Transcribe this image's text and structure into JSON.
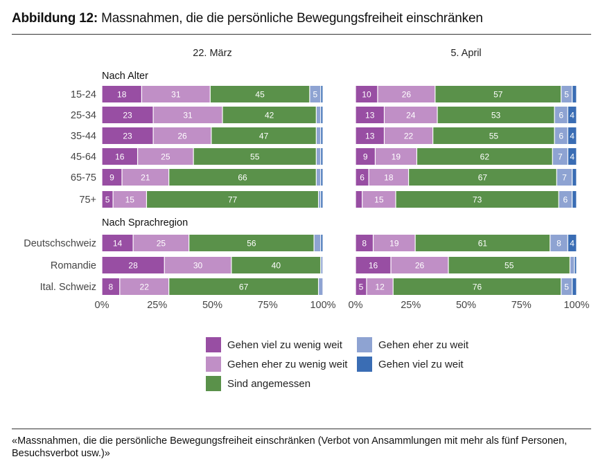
{
  "figure": {
    "label": "Abbildung 12:",
    "title": "Massnahmen, die die persönliche Bewegungsfreiheit einschränken",
    "footnote": "«Massnahmen, die die persönliche Bewegungsfreiheit einschränken (Verbot von Ansammlungen mit mehr als fünf Personen, Besuchsverbot usw.)»"
  },
  "chart_data": {
    "type": "bar",
    "orientation": "horizontal",
    "stacked": true,
    "title": "Massnahmen, die die persönliche Bewegungsfreiheit einschränken",
    "xlabel": "",
    "ylabel": "",
    "xlim": [
      0,
      100
    ],
    "x_ticks": [
      "0%",
      "25%",
      "50%",
      "75%",
      "100%"
    ],
    "grid": false,
    "legend_position": "bottom",
    "colors": {
      "viel_zu_wenig": "#984ea3",
      "eher_zu_wenig": "#c08fc6",
      "angemessen": "#5a914a",
      "eher_zu_weit": "#8ea3d2",
      "viel_zu_weit": "#3a6db4"
    },
    "legend": [
      {
        "key": "viel_zu_wenig",
        "label": "Gehen viel zu wenig weit"
      },
      {
        "key": "eher_zu_wenig",
        "label": "Gehen eher zu wenig weit"
      },
      {
        "key": "angemessen",
        "label": "Sind angemessen"
      },
      {
        "key": "eher_zu_weit",
        "label": "Gehen eher zu weit"
      },
      {
        "key": "viel_zu_weit",
        "label": "Gehen viel zu weit"
      }
    ],
    "series_keys": [
      "viel_zu_wenig",
      "eher_zu_wenig",
      "angemessen",
      "eher_zu_weit",
      "viel_zu_weit"
    ],
    "groups": [
      {
        "label": "Nach Alter",
        "categories": [
          "15-24",
          "25-34",
          "35-44",
          "45-64",
          "65-75",
          "75+"
        ]
      },
      {
        "label": "Nach Sprachregion",
        "categories": [
          "Deutschschweiz",
          "Romandie",
          "Ital. Schweiz"
        ]
      }
    ],
    "panels": [
      {
        "title": "22. März",
        "rows": [
          {
            "category": "15-24",
            "values": [
              18,
              31,
              45,
              5,
              1
            ]
          },
          {
            "category": "25-34",
            "values": [
              23,
              31,
              42,
              2,
              1
            ]
          },
          {
            "category": "35-44",
            "values": [
              23,
              26,
              47,
              2,
              1
            ]
          },
          {
            "category": "45-64",
            "values": [
              16,
              25,
              55,
              2,
              1
            ]
          },
          {
            "category": "65-75",
            "values": [
              9,
              21,
              66,
              2,
              1
            ]
          },
          {
            "category": "75+",
            "values": [
              5,
              15,
              77,
              1,
              1
            ]
          },
          {
            "category": "Deutschschweiz",
            "values": [
              14,
              25,
              56,
              3,
              1
            ]
          },
          {
            "category": "Romandie",
            "values": [
              28,
              30,
              40,
              1,
              0
            ]
          },
          {
            "category": "Ital. Schweiz",
            "values": [
              8,
              22,
              67,
              2,
              0
            ]
          }
        ]
      },
      {
        "title": "5. April",
        "rows": [
          {
            "category": "15-24",
            "values": [
              10,
              26,
              57,
              5,
              2
            ]
          },
          {
            "category": "25-34",
            "values": [
              13,
              24,
              53,
              6,
              4
            ]
          },
          {
            "category": "35-44",
            "values": [
              13,
              22,
              55,
              6,
              4
            ]
          },
          {
            "category": "45-64",
            "values": [
              9,
              19,
              62,
              7,
              4
            ]
          },
          {
            "category": "65-75",
            "values": [
              6,
              18,
              67,
              7,
              2
            ]
          },
          {
            "category": "75+",
            "values": [
              3,
              15,
              73,
              6,
              2
            ]
          },
          {
            "category": "Deutschschweiz",
            "values": [
              8,
              19,
              61,
              8,
              4
            ]
          },
          {
            "category": "Romandie",
            "values": [
              16,
              26,
              55,
              2,
              1
            ]
          },
          {
            "category": "Ital. Schweiz",
            "values": [
              5,
              12,
              76,
              5,
              2
            ]
          }
        ]
      }
    ]
  }
}
